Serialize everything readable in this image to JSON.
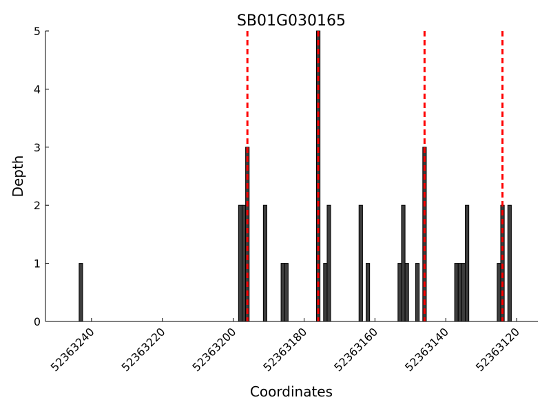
{
  "chart_data": {
    "type": "bar",
    "title": "SB01G030165",
    "xlabel": "Coordinates",
    "ylabel": "Depth",
    "x_reversed": true,
    "xlim": [
      52363253,
      52363114
    ],
    "ylim": [
      0,
      5
    ],
    "xticks": [
      "52363240",
      "52363220",
      "52363200",
      "52363180",
      "52363160",
      "52363140",
      "52363120"
    ],
    "yticks": [
      "0",
      "1",
      "2",
      "3",
      "4",
      "5"
    ],
    "bar_color": "#3d3d3d",
    "marker_color": "#ff0000",
    "bars": [
      {
        "x": 52363243,
        "depth": 1
      },
      {
        "x": 52363198,
        "depth": 2
      },
      {
        "x": 52363197,
        "depth": 2
      },
      {
        "x": 52363196,
        "depth": 3
      },
      {
        "x": 52363191,
        "depth": 2
      },
      {
        "x": 52363186,
        "depth": 1
      },
      {
        "x": 52363185,
        "depth": 1
      },
      {
        "x": 52363176,
        "depth": 5
      },
      {
        "x": 52363174,
        "depth": 1
      },
      {
        "x": 52363173,
        "depth": 2
      },
      {
        "x": 52363164,
        "depth": 2
      },
      {
        "x": 52363162,
        "depth": 1
      },
      {
        "x": 52363153,
        "depth": 1
      },
      {
        "x": 52363152,
        "depth": 2
      },
      {
        "x": 52363151,
        "depth": 1
      },
      {
        "x": 52363148,
        "depth": 1
      },
      {
        "x": 52363146,
        "depth": 3
      },
      {
        "x": 52363137,
        "depth": 1
      },
      {
        "x": 52363136,
        "depth": 1
      },
      {
        "x": 52363135,
        "depth": 1
      },
      {
        "x": 52363134,
        "depth": 2
      },
      {
        "x": 52363125,
        "depth": 1
      },
      {
        "x": 52363124,
        "depth": 2
      },
      {
        "x": 52363122,
        "depth": 2
      }
    ],
    "markers": [
      52363196,
      52363176,
      52363146,
      52363124
    ]
  }
}
